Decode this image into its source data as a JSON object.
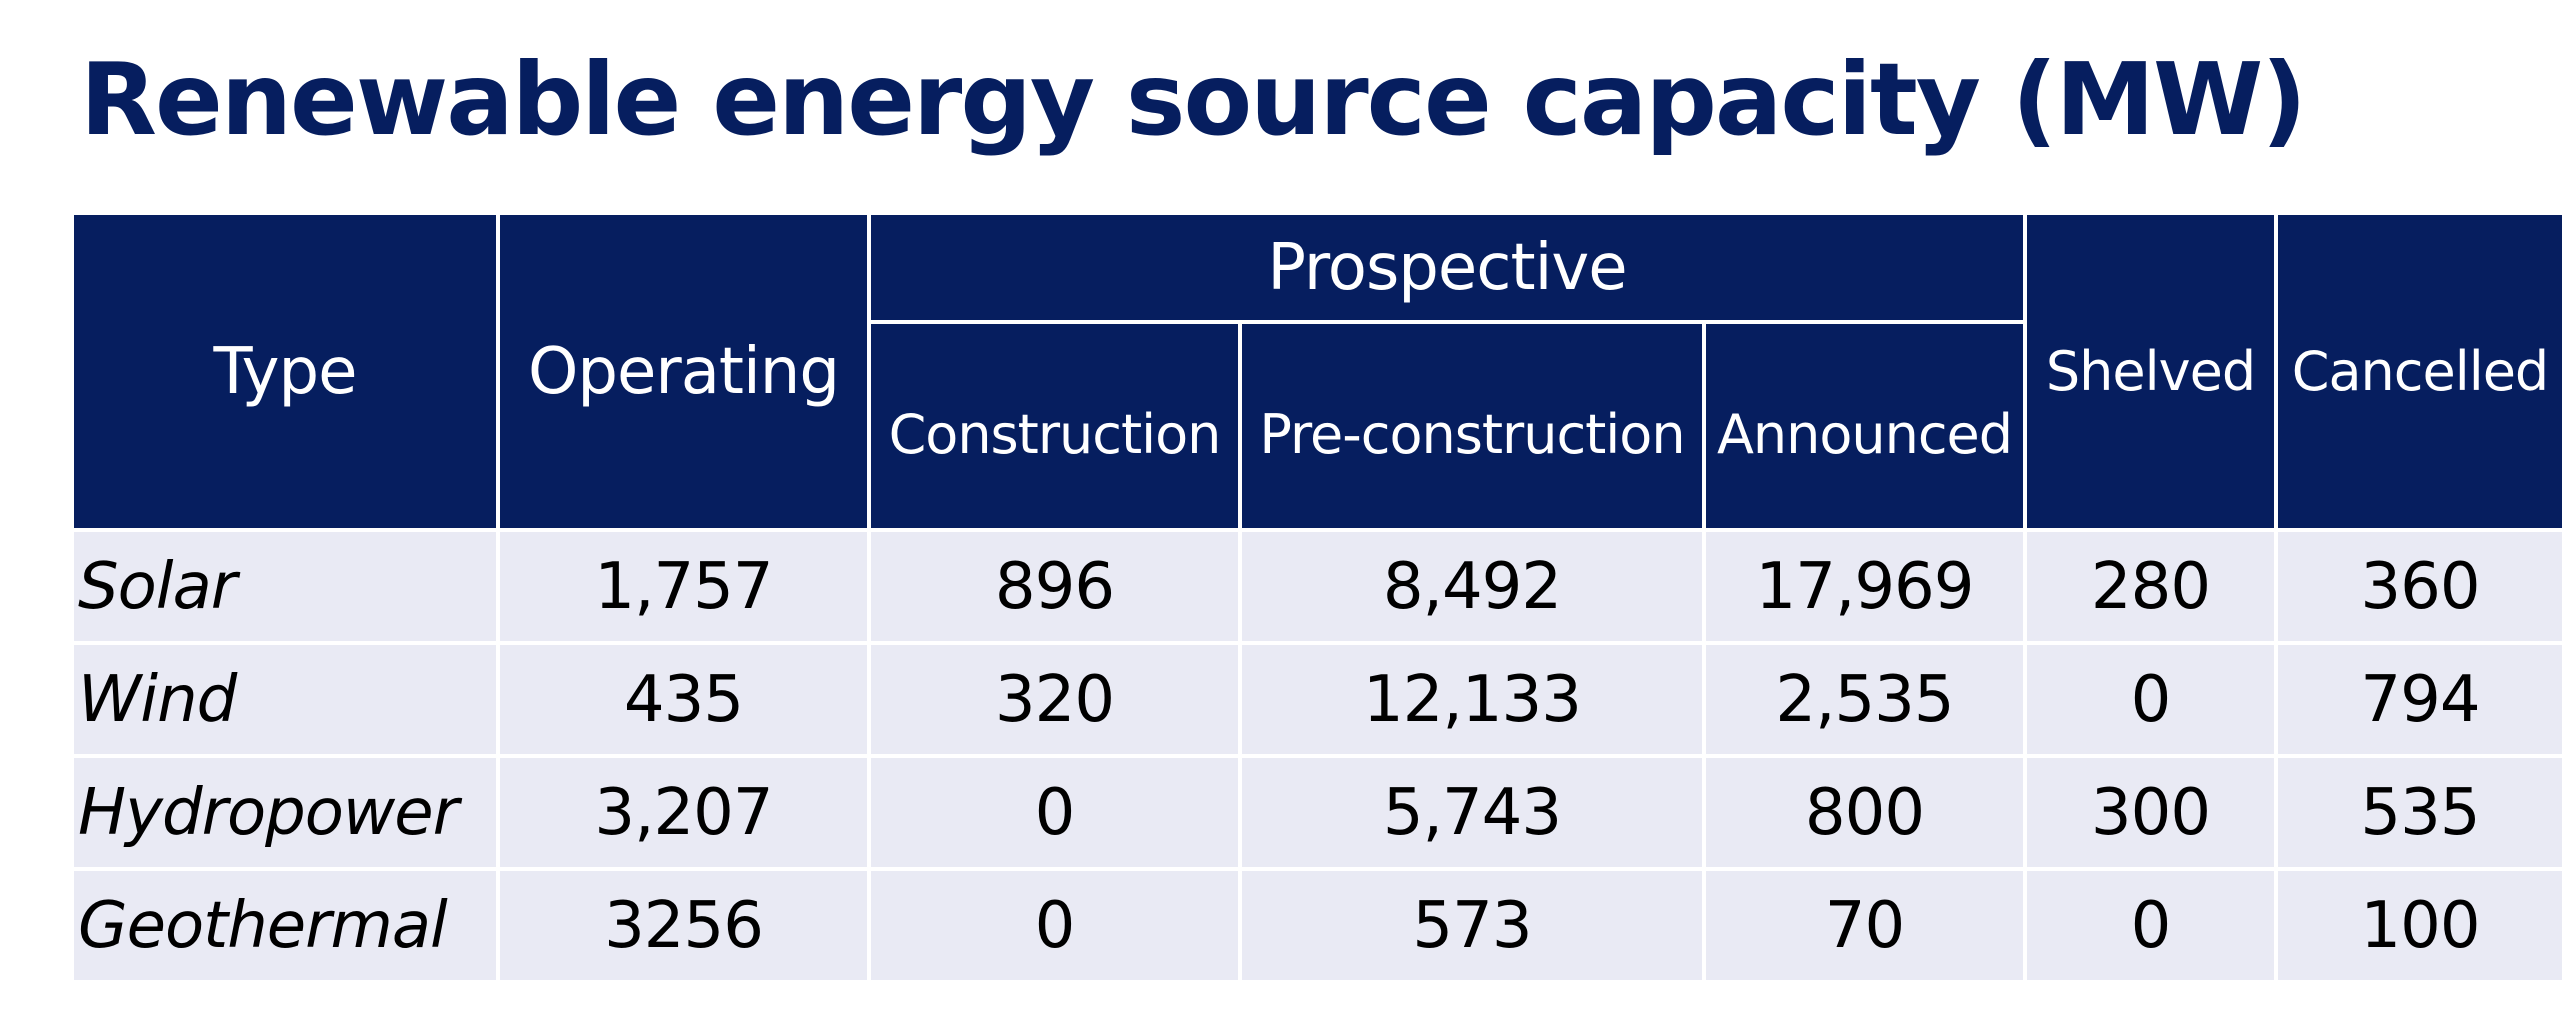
{
  "title": "Renewable energy source capacity (MW)",
  "table": {
    "headers": {
      "type": "Type",
      "operating": "Operating",
      "prospective": "Prospective",
      "construction": "Construction",
      "pre_construction": "Pre-construction",
      "announced": "Announced",
      "shelved": "Shelved",
      "cancelled": "Cancelled"
    },
    "rows": [
      {
        "type": "Solar",
        "operating": "1,757",
        "construction": "896",
        "pre_construction": "8,492",
        "announced": "17,969",
        "shelved": "280",
        "cancelled": "360"
      },
      {
        "type": "Wind",
        "operating": "435",
        "construction": "320",
        "pre_construction": "12,133",
        "announced": "2,535",
        "shelved": "0",
        "cancelled": "794"
      },
      {
        "type": "Hydropower",
        "operating": "3,207",
        "construction": "0",
        "pre_construction": "5,743",
        "announced": "800",
        "shelved": "300",
        "cancelled": "535"
      },
      {
        "type": "Geothermal",
        "operating": "3256",
        "construction": "0",
        "pre_construction": "573",
        "announced": "70",
        "shelved": "0",
        "cancelled": "100"
      }
    ]
  },
  "colors": {
    "header_background": "#061e5f",
    "title_text": "#061e5f",
    "row_background": "#e9eaf4"
  }
}
